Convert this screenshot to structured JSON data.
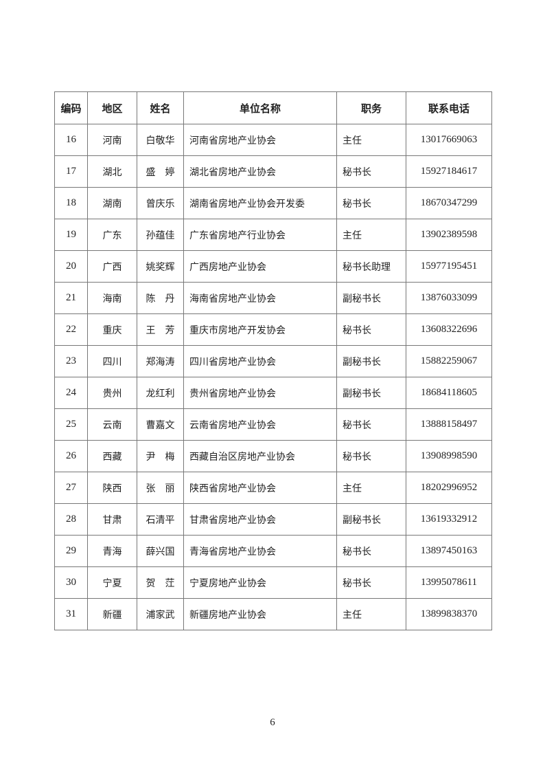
{
  "table": {
    "headers": [
      "编码",
      "地区",
      "姓名",
      "单位名称",
      "职务",
      "联系电话"
    ],
    "rows": [
      [
        "16",
        "河南",
        "白敬华",
        "河南省房地产业协会",
        "主任",
        "13017669063"
      ],
      [
        "17",
        "湖北",
        "盛　婷",
        "湖北省房地产业协会",
        "秘书长",
        "15927184617"
      ],
      [
        "18",
        "湖南",
        "曾庆乐",
        "湖南省房地产业协会开发委",
        "秘书长",
        "18670347299"
      ],
      [
        "19",
        "广东",
        "孙蕴佳",
        "广东省房地产行业协会",
        "主任",
        "13902389598"
      ],
      [
        "20",
        "广西",
        "姚奖辉",
        "广西房地产业协会",
        "秘书长助理",
        "15977195451"
      ],
      [
        "21",
        "海南",
        "陈　丹",
        "海南省房地产业协会",
        "副秘书长",
        "13876033099"
      ],
      [
        "22",
        "重庆",
        "王　芳",
        "重庆市房地产开发协会",
        "秘书长",
        "13608322696"
      ],
      [
        "23",
        "四川",
        "郑海涛",
        "四川省房地产业协会",
        "副秘书长",
        "15882259067"
      ],
      [
        "24",
        "贵州",
        "龙红利",
        "贵州省房地产业协会",
        "副秘书长",
        "18684118605"
      ],
      [
        "25",
        "云南",
        "曹嘉文",
        "云南省房地产业协会",
        "秘书长",
        "13888158497"
      ],
      [
        "26",
        "西藏",
        "尹　梅",
        "西藏自治区房地产业协会",
        "秘书长",
        "13908998590"
      ],
      [
        "27",
        "陕西",
        "张　丽",
        "陕西省房地产业协会",
        "主任",
        "18202996952"
      ],
      [
        "28",
        "甘肃",
        "石清平",
        "甘肃省房地产业协会",
        "副秘书长",
        "13619332912"
      ],
      [
        "29",
        "青海",
        "薛兴国",
        "青海省房地产业协会",
        "秘书长",
        "13897450163"
      ],
      [
        "30",
        "宁夏",
        "贺　茳",
        "宁夏房地产业协会",
        "秘书长",
        "13995078611"
      ],
      [
        "31",
        "新疆",
        "浦家武",
        "新疆房地产业协会",
        "主任",
        "13899838370"
      ]
    ]
  },
  "page_number": "6"
}
